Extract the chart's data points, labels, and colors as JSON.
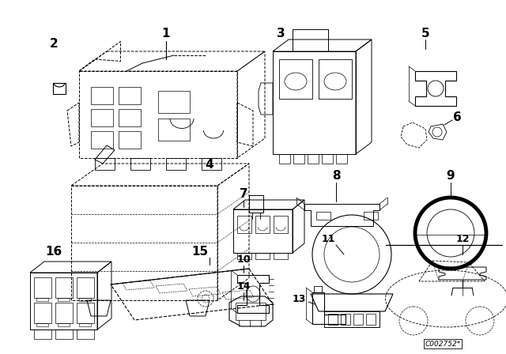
{
  "background_color": "#ffffff",
  "line_color": "#000000",
  "fig_width": 6.4,
  "fig_height": 4.48,
  "dpi": 100,
  "watermark": "C002752*"
}
